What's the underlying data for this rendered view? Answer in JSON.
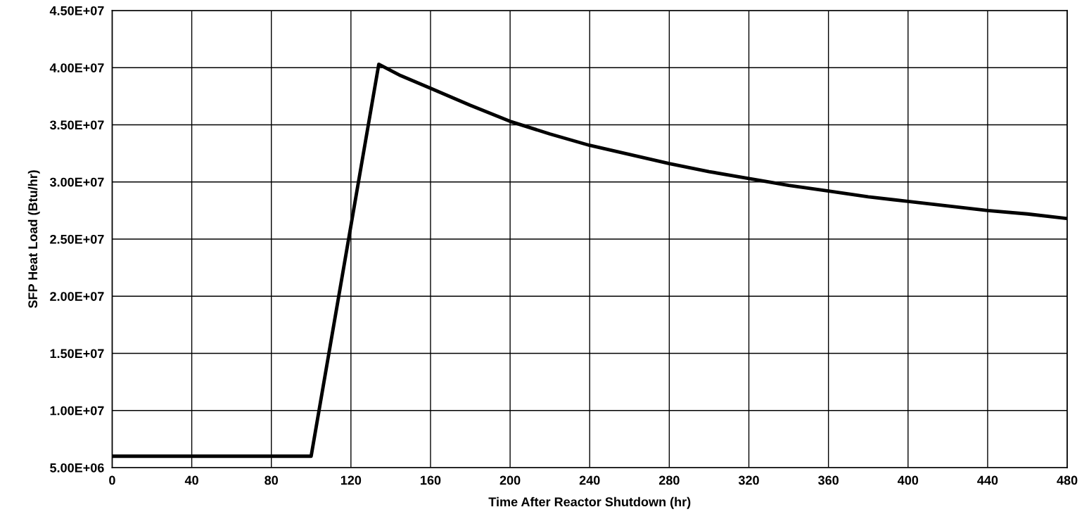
{
  "chart_data": {
    "type": "line",
    "xlabel": "Time After Reactor Shutdown (hr)",
    "ylabel": "SFP Heat Load (Btu/hr)",
    "x": [
      0,
      20,
      40,
      60,
      80,
      100,
      134,
      145,
      160,
      180,
      200,
      220,
      240,
      260,
      280,
      300,
      320,
      340,
      360,
      380,
      400,
      420,
      440,
      460,
      480
    ],
    "series": [
      {
        "color": "#000000",
        "values": [
          6000000,
          6000000,
          6000000,
          6000000,
          6000000,
          6000000,
          40300000,
          39300000,
          38200000,
          36700000,
          35300000,
          34200000,
          33200000,
          32400000,
          31600000,
          30900000,
          30300000,
          29700000,
          29200000,
          28700000,
          28300000,
          27900000,
          27500000,
          27200000,
          26800000
        ]
      }
    ],
    "xlim": [
      0,
      480
    ],
    "xticks": [
      0,
      40,
      80,
      120,
      160,
      200,
      240,
      280,
      320,
      360,
      400,
      440,
      480
    ],
    "ylim": [
      5000000,
      45000000
    ],
    "yticks": [
      {
        "value": 5000000,
        "label": "5.00E+06"
      },
      {
        "value": 10000000,
        "label": "1.00E+07"
      },
      {
        "value": 15000000,
        "label": "1.50E+07"
      },
      {
        "value": 20000000,
        "label": "2.00E+07"
      },
      {
        "value": 25000000,
        "label": "2.50E+07"
      },
      {
        "value": 30000000,
        "label": "3.00E+07"
      },
      {
        "value": 35000000,
        "label": "3.50E+07"
      },
      {
        "value": 40000000,
        "label": "4.00E+07"
      },
      {
        "value": 45000000,
        "label": "4.50E+07"
      }
    ],
    "grid": true,
    "marker": "none",
    "line_style": "solid"
  }
}
